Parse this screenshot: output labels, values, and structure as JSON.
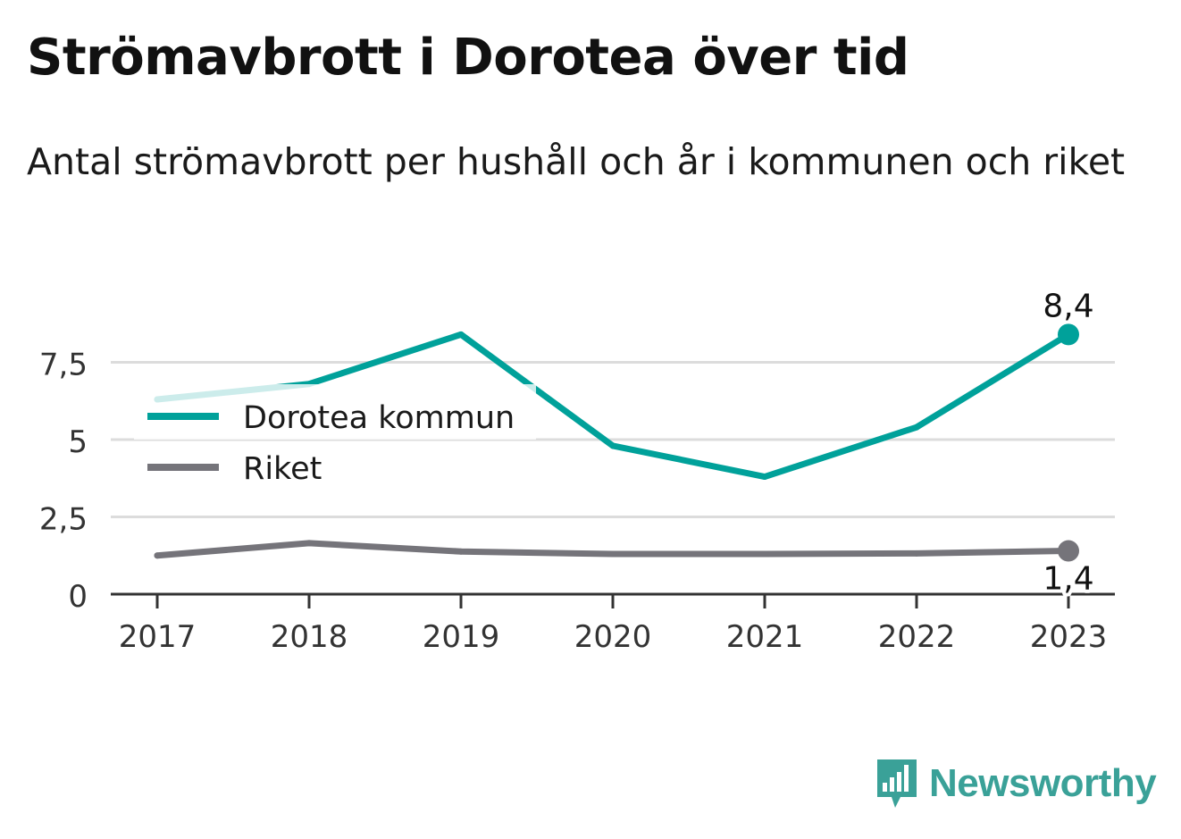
{
  "header": {
    "title": "Strömavbrott i Dorotea över tid",
    "subtitle": "Antal strömavbrott per hushåll och år i kommunen och riket"
  },
  "chart_data": {
    "type": "line",
    "title": "Strömavbrott i Dorotea över tid",
    "subtitle": "Antal strömavbrott per hushåll och år i kommunen och riket",
    "xlabel": "",
    "ylabel": "",
    "x": [
      "2017",
      "2018",
      "2019",
      "2020",
      "2021",
      "2022",
      "2023"
    ],
    "ylim": [
      0,
      8.4
    ],
    "yticks": [
      {
        "value": 0,
        "label": "0"
      },
      {
        "value": 2.5,
        "label": "2,5"
      },
      {
        "value": 5,
        "label": "5"
      },
      {
        "value": 7.5,
        "label": "7,5"
      }
    ],
    "grid": true,
    "legend": "left",
    "series": [
      {
        "name": "Dorotea kommun",
        "color": "#00a19a",
        "values": [
          6.3,
          6.8,
          8.4,
          4.8,
          3.8,
          5.4,
          8.4
        ],
        "end_label": "8,4"
      },
      {
        "name": "Riket",
        "color": "#75747a",
        "values": [
          1.25,
          1.65,
          1.38,
          1.3,
          1.3,
          1.32,
          1.4
        ],
        "end_label": "1,4"
      }
    ]
  },
  "brand": {
    "name": "Newsworthy",
    "icon": "newsworthy-logo-icon",
    "color": "#3aa198"
  }
}
